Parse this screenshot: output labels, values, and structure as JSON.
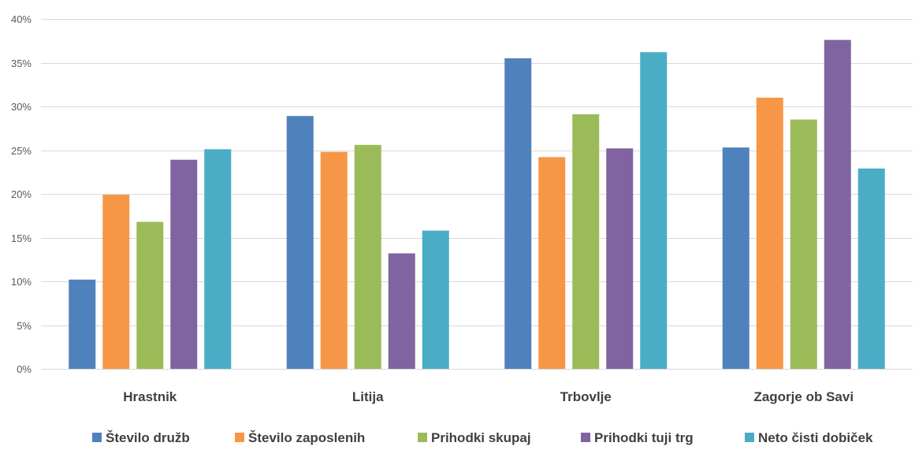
{
  "chart_data": {
    "type": "bar",
    "title": "",
    "xlabel": "",
    "ylabel": "",
    "ylim": [
      0,
      40
    ],
    "y_ticks": [
      "0%",
      "5%",
      "10%",
      "15%",
      "20%",
      "25%",
      "30%",
      "35%",
      "40%"
    ],
    "y_tick_values": [
      0,
      5,
      10,
      15,
      20,
      25,
      30,
      35,
      40
    ],
    "grid": true,
    "legend_position": "bottom",
    "categories": [
      "Hrastnik",
      "Litija",
      "Trbovlje",
      "Zagorje ob Savi"
    ],
    "series": [
      {
        "name": "Število družb",
        "color": "#4f81bd",
        "values": [
          10.2,
          28.9,
          35.5,
          25.3
        ]
      },
      {
        "name": "Število zaposlenih",
        "color": "#f79646",
        "values": [
          19.9,
          24.8,
          24.2,
          31.0
        ]
      },
      {
        "name": "Prihodki skupaj",
        "color": "#9bbb59",
        "values": [
          16.8,
          25.6,
          29.1,
          28.5
        ]
      },
      {
        "name": "Prihodki tuji trg",
        "color": "#8064a2",
        "values": [
          23.9,
          13.2,
          25.2,
          37.6
        ]
      },
      {
        "name": "Neto čisti dobiček",
        "color": "#4bacc6",
        "values": [
          25.1,
          15.8,
          36.2,
          22.9
        ]
      }
    ]
  }
}
